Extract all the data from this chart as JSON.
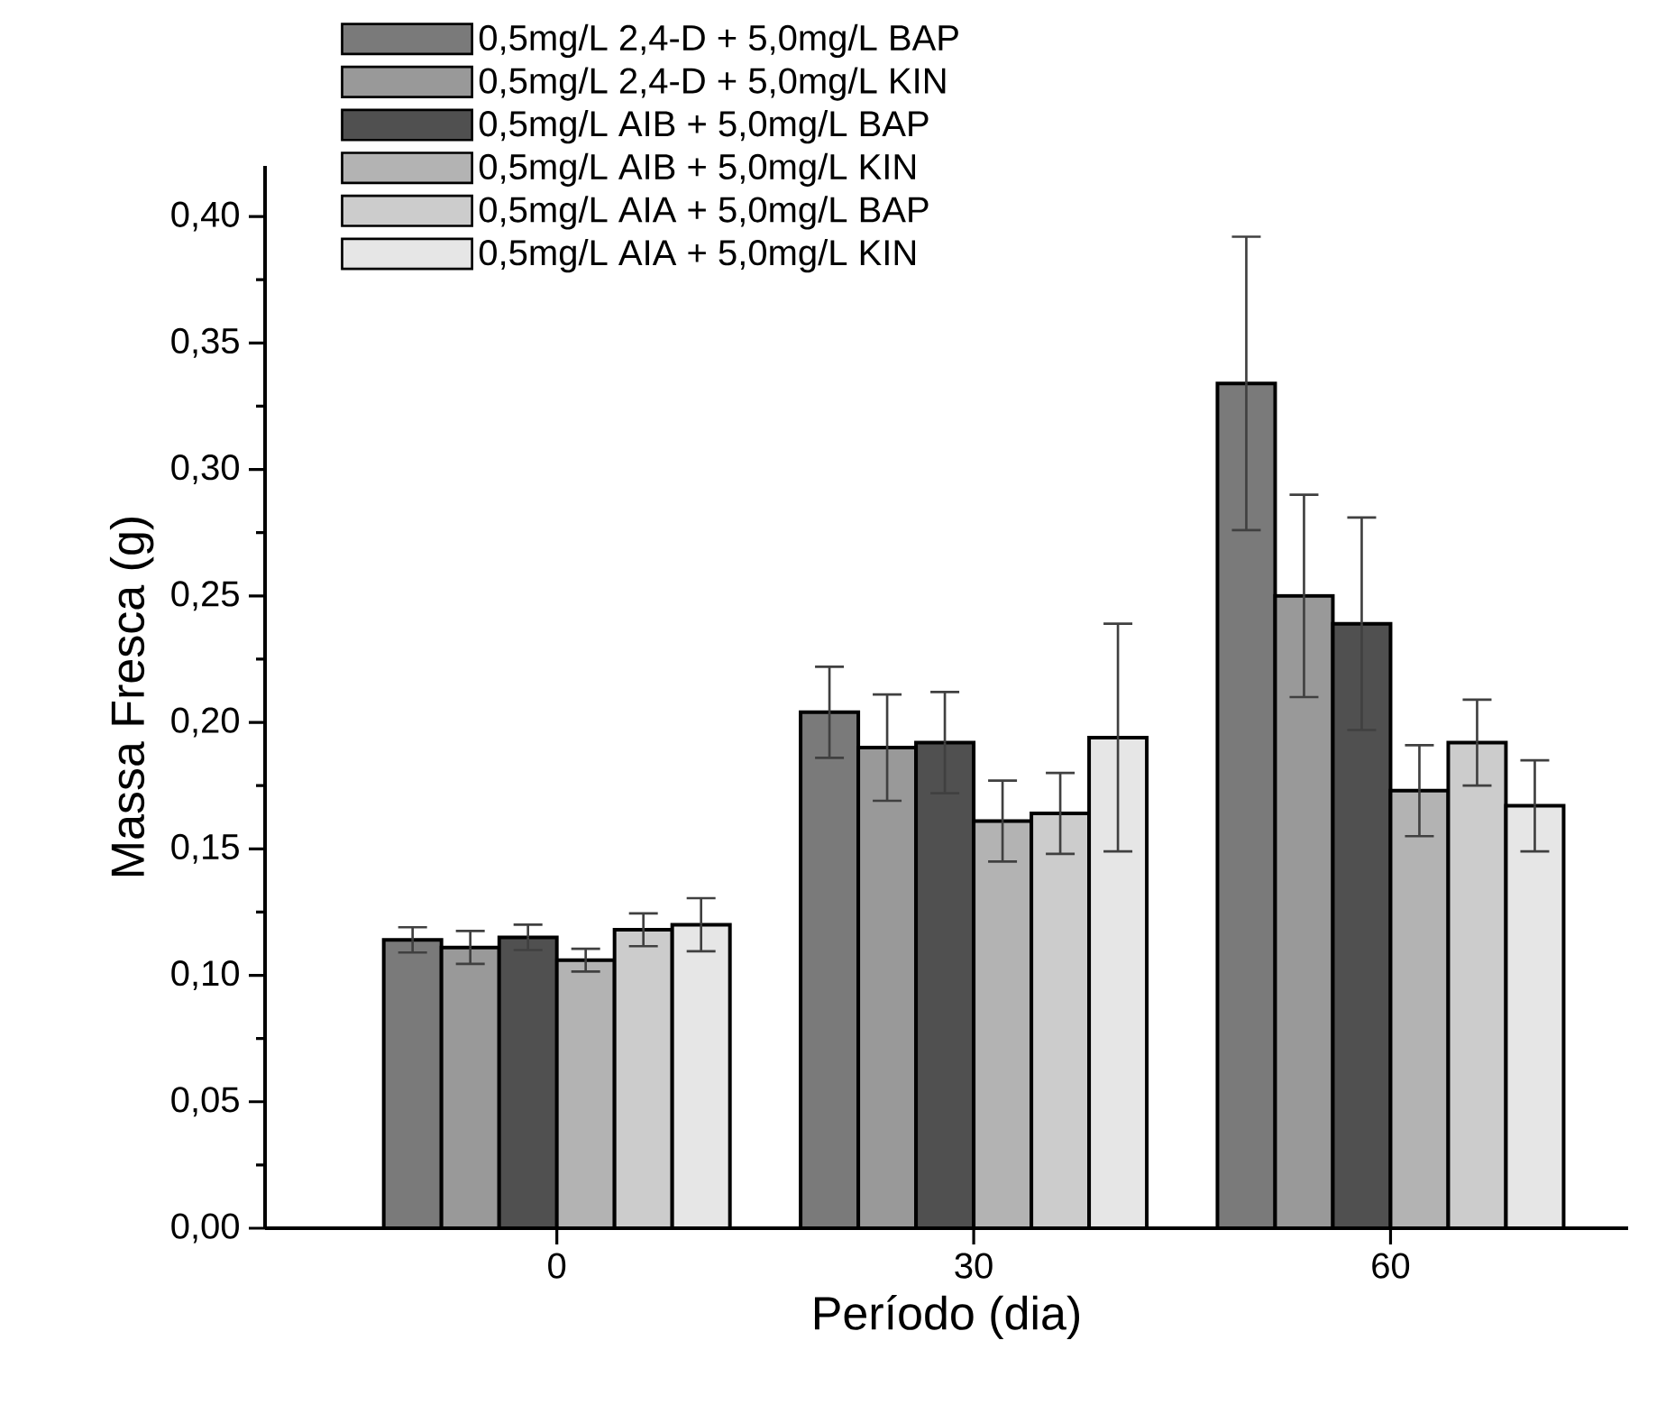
{
  "chart_data": {
    "type": "bar",
    "xlabel": "Período (dia)",
    "ylabel": "Massa Fresca (g)",
    "categories": [
      "0",
      "30",
      "60"
    ],
    "series": [
      {
        "name": "0,5mg/L 2,4-D + 5,0mg/L BAP",
        "color": "#7a7a7a",
        "values": [
          0.114,
          0.204,
          0.334
        ],
        "errors": [
          0.005,
          0.018,
          0.058
        ]
      },
      {
        "name": "0,5mg/L 2,4-D + 5,0mg/L KIN",
        "color": "#999999",
        "values": [
          0.111,
          0.19,
          0.25
        ],
        "errors": [
          0.0065,
          0.021,
          0.04
        ]
      },
      {
        "name": "0,5mg/L AIB + 5,0mg/L BAP",
        "color": "#505050",
        "values": [
          0.115,
          0.192,
          0.239
        ],
        "errors": [
          0.005,
          0.02,
          0.042
        ]
      },
      {
        "name": "0,5mg/L AIB + 5,0mg/L KIN",
        "color": "#b3b3b3",
        "values": [
          0.106,
          0.161,
          0.173
        ],
        "errors": [
          0.0045,
          0.016,
          0.018
        ]
      },
      {
        "name": "0,5mg/L AIA + 5,0mg/L BAP",
        "color": "#cccccc",
        "values": [
          0.118,
          0.164,
          0.192
        ],
        "errors": [
          0.0065,
          0.016,
          0.017
        ]
      },
      {
        "name": "0,5mg/L AIA + 5,0mg/L KIN",
        "color": "#e6e6e6",
        "values": [
          0.12,
          0.194,
          0.167
        ],
        "errors": [
          0.0105,
          0.045,
          0.018
        ]
      }
    ],
    "ylim": [
      0,
      0.42
    ],
    "yticks": [
      {
        "value": 0,
        "label": "0,00"
      },
      {
        "value": 0.05,
        "label": "0,05"
      },
      {
        "value": 0.1,
        "label": "0,10"
      },
      {
        "value": 0.15,
        "label": "0,15"
      },
      {
        "value": 0.2,
        "label": "0,20"
      },
      {
        "value": 0.25,
        "label": "0,25"
      },
      {
        "value": 0.3,
        "label": "0,30"
      },
      {
        "value": 0.35,
        "label": "0,35"
      },
      {
        "value": 0.4,
        "label": "0,40"
      }
    ],
    "grid": false,
    "legend": "top"
  }
}
